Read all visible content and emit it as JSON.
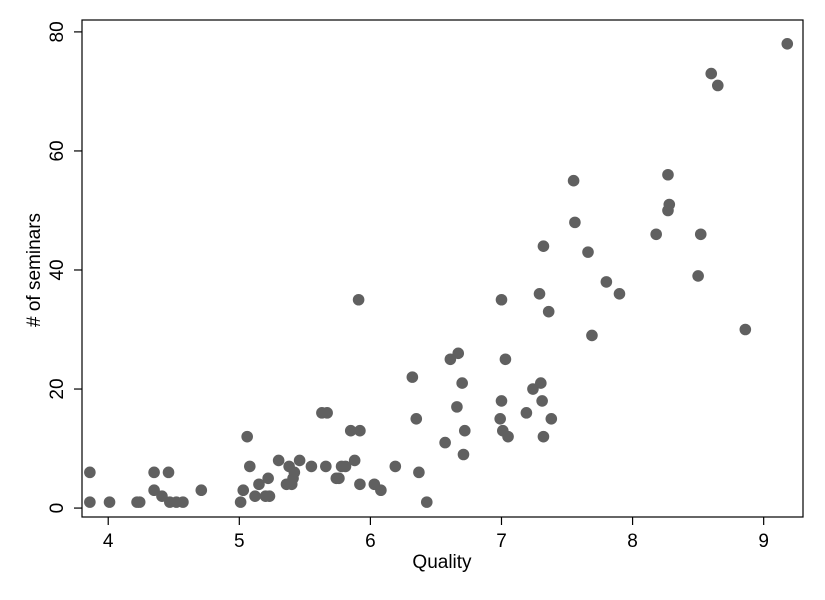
{
  "chart_data": {
    "type": "scatter",
    "title": "",
    "xlabel": "Quality",
    "ylabel": "# of seminars",
    "xlim": [
      3.8,
      9.3
    ],
    "ylim": [
      -1.5,
      82
    ],
    "grid": false,
    "legend": "none",
    "marker_color": "#606060",
    "x_ticks": [
      4,
      5,
      6,
      7,
      8,
      9
    ],
    "y_ticks": [
      0,
      20,
      40,
      60,
      80
    ],
    "x_tick_labels": [
      "4",
      "5",
      "6",
      "7",
      "8",
      "9"
    ],
    "y_tick_labels": [
      "0",
      "20",
      "40",
      "60",
      "80"
    ],
    "points": [
      [
        3.86,
        1
      ],
      [
        3.86,
        6
      ],
      [
        4.01,
        1
      ],
      [
        4.22,
        1
      ],
      [
        4.24,
        1
      ],
      [
        4.35,
        6
      ],
      [
        4.35,
        3
      ],
      [
        4.41,
        2
      ],
      [
        4.46,
        6
      ],
      [
        4.47,
        1
      ],
      [
        4.52,
        1
      ],
      [
        4.57,
        1
      ],
      [
        4.71,
        3
      ],
      [
        5.01,
        1
      ],
      [
        5.03,
        3
      ],
      [
        5.06,
        12
      ],
      [
        5.08,
        7
      ],
      [
        5.12,
        2
      ],
      [
        5.15,
        4
      ],
      [
        5.2,
        2
      ],
      [
        5.23,
        2
      ],
      [
        5.22,
        5
      ],
      [
        5.3,
        8
      ],
      [
        5.36,
        4
      ],
      [
        5.38,
        7
      ],
      [
        5.4,
        4
      ],
      [
        5.41,
        5
      ],
      [
        5.42,
        6
      ],
      [
        5.46,
        8
      ],
      [
        5.55,
        7
      ],
      [
        5.63,
        16
      ],
      [
        5.67,
        16
      ],
      [
        5.66,
        7
      ],
      [
        5.74,
        5
      ],
      [
        5.76,
        5
      ],
      [
        5.78,
        7
      ],
      [
        5.81,
        7
      ],
      [
        5.85,
        13
      ],
      [
        5.88,
        8
      ],
      [
        5.91,
        35
      ],
      [
        5.92,
        13
      ],
      [
        5.92,
        4
      ],
      [
        6.03,
        4
      ],
      [
        6.08,
        3
      ],
      [
        6.19,
        7
      ],
      [
        6.32,
        22
      ],
      [
        6.35,
        15
      ],
      [
        6.37,
        6
      ],
      [
        6.43,
        1
      ],
      [
        6.57,
        11
      ],
      [
        6.61,
        25
      ],
      [
        6.66,
        17
      ],
      [
        6.67,
        26
      ],
      [
        6.7,
        21
      ],
      [
        6.71,
        9
      ],
      [
        6.72,
        13
      ],
      [
        6.99,
        15
      ],
      [
        7.0,
        35
      ],
      [
        7.0,
        18
      ],
      [
        7.01,
        13
      ],
      [
        7.03,
        25
      ],
      [
        7.05,
        12
      ],
      [
        7.19,
        16
      ],
      [
        7.24,
        20
      ],
      [
        7.29,
        36
      ],
      [
        7.3,
        21
      ],
      [
        7.31,
        18
      ],
      [
        7.32,
        12
      ],
      [
        7.32,
        44
      ],
      [
        7.36,
        33
      ],
      [
        7.38,
        15
      ],
      [
        7.55,
        55
      ],
      [
        7.56,
        48
      ],
      [
        7.66,
        43
      ],
      [
        7.69,
        29
      ],
      [
        7.8,
        38
      ],
      [
        7.9,
        36
      ],
      [
        8.18,
        46
      ],
      [
        8.27,
        56
      ],
      [
        8.27,
        50
      ],
      [
        8.28,
        51
      ],
      [
        8.5,
        39
      ],
      [
        8.52,
        46
      ],
      [
        8.6,
        73
      ],
      [
        8.65,
        71
      ],
      [
        8.86,
        30
      ],
      [
        9.18,
        78
      ]
    ]
  }
}
